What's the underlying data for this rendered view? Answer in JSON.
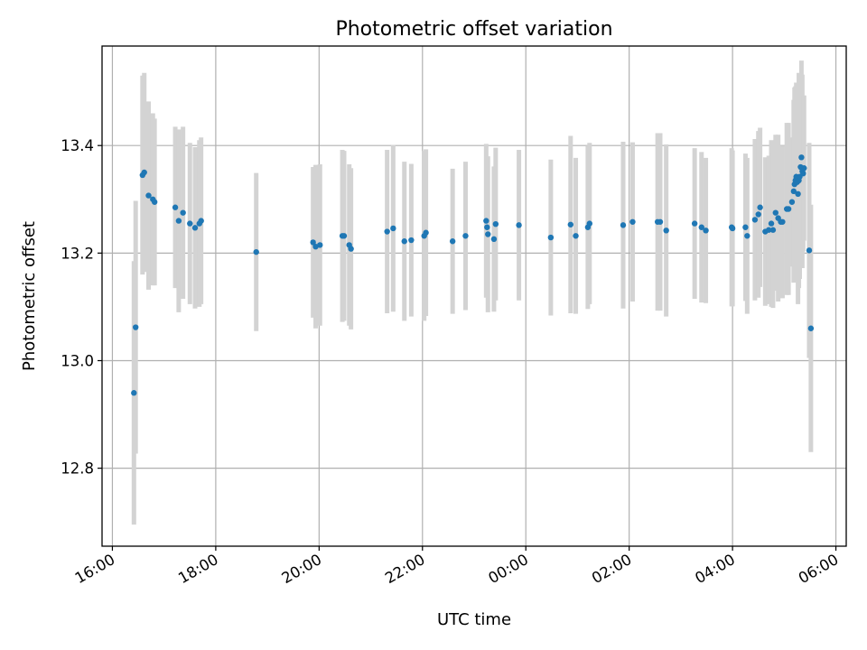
{
  "chart_data": {
    "type": "scatter",
    "title": "Photometric offset variation",
    "xlabel": "UTC time",
    "ylabel": "Photometric offset",
    "x_ticks": [
      "16:00",
      "18:00",
      "20:00",
      "22:00",
      "00:00",
      "02:00",
      "04:00",
      "06:00"
    ],
    "y_ticks": [
      "12.8",
      "13.0",
      "13.2",
      "13.4"
    ],
    "y_tick_values": [
      12.8,
      13.0,
      13.2,
      13.4
    ],
    "xlim": [
      "15:48",
      "06:12"
    ],
    "ylim": [
      12.655,
      13.585
    ],
    "grid": true,
    "colors": {
      "point": "#1f77b4",
      "errorbar": "#d3d3d3",
      "grid": "#b0b0b0"
    },
    "series": [
      {
        "x": [
          "16:25",
          "16:27",
          "16:35",
          "16:37",
          "16:42",
          "16:47",
          "16:49",
          "17:13",
          "17:17",
          "17:22",
          "17:30",
          "17:36",
          "17:41",
          "17:43",
          "18:47",
          "19:53",
          "19:56",
          "20:01",
          "20:27",
          "20:29",
          "20:35",
          "20:37",
          "21:19",
          "21:26",
          "21:39",
          "21:47",
          "22:02",
          "22:04",
          "22:35",
          "22:50",
          "23:14",
          "23:15",
          "23:16",
          "23:23",
          "23:25",
          "23:52",
          "00:29",
          "00:52",
          "00:58",
          "01:12",
          "01:14",
          "01:53",
          "02:04",
          "02:33",
          "02:36",
          "02:43",
          "03:16",
          "03:24",
          "03:29",
          "03:59",
          "04:00",
          "04:15",
          "04:17",
          "04:26",
          "04:30",
          "04:32",
          "04:38",
          "04:42",
          "04:45",
          "04:47",
          "04:50",
          "04:53",
          "04:56",
          "04:58",
          "05:03",
          "05:05",
          "05:09",
          "05:11",
          "05:12",
          "05:13",
          "05:14",
          "05:15",
          "05:16",
          "05:17",
          "05:18",
          "05:19",
          "05:20",
          "05:21",
          "05:22",
          "05:23",
          "05:29",
          "05:31"
        ],
        "y": [
          12.94,
          13.062,
          13.345,
          13.35,
          13.307,
          13.3,
          13.295,
          13.285,
          13.26,
          13.275,
          13.255,
          13.247,
          13.255,
          13.26,
          13.202,
          13.22,
          13.212,
          13.215,
          13.232,
          13.232,
          13.215,
          13.208,
          13.24,
          13.246,
          13.222,
          13.224,
          13.232,
          13.238,
          13.222,
          13.232,
          13.26,
          13.248,
          13.235,
          13.226,
          13.254,
          13.252,
          13.229,
          13.253,
          13.232,
          13.248,
          13.255,
          13.252,
          13.258,
          13.258,
          13.258,
          13.242,
          13.255,
          13.248,
          13.242,
          13.248,
          13.246,
          13.248,
          13.232,
          13.262,
          13.272,
          13.285,
          13.24,
          13.243,
          13.255,
          13.243,
          13.275,
          13.265,
          13.258,
          13.258,
          13.282,
          13.282,
          13.295,
          13.315,
          13.328,
          13.335,
          13.342,
          13.332,
          13.31,
          13.335,
          13.342,
          13.36,
          13.378,
          13.352,
          13.348,
          13.358,
          13.205,
          13.06
        ],
        "yerr": [
          0.245,
          0.235,
          0.185,
          0.185,
          0.175,
          0.16,
          0.155,
          0.15,
          0.17,
          0.16,
          0.15,
          0.15,
          0.155,
          0.155,
          0.147,
          0.14,
          0.152,
          0.15,
          0.16,
          0.158,
          0.15,
          0.15,
          0.152,
          0.155,
          0.148,
          0.142,
          0.158,
          0.155,
          0.135,
          0.138,
          0.143,
          0.13,
          0.145,
          0.135,
          0.142,
          0.14,
          0.145,
          0.165,
          0.145,
          0.152,
          0.15,
          0.155,
          0.148,
          0.165,
          0.165,
          0.16,
          0.14,
          0.14,
          0.135,
          0.147,
          0.145,
          0.137,
          0.145,
          0.15,
          0.155,
          0.148,
          0.138,
          0.138,
          0.155,
          0.145,
          0.145,
          0.155,
          0.14,
          0.142,
          0.16,
          0.16,
          0.12,
          0.17,
          0.18,
          0.175,
          0.175,
          0.18,
          0.205,
          0.2,
          0.19,
          0.165,
          0.18,
          0.18,
          0.145,
          0.135,
          0.2,
          0.23
        ]
      }
    ]
  }
}
